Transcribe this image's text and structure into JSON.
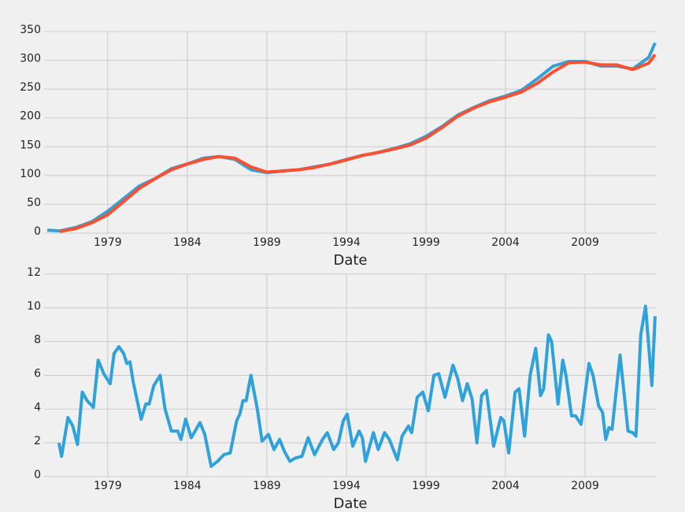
{
  "chart_data": [
    {
      "type": "line",
      "xlabel": "Date",
      "x": [
        1975.2,
        1976,
        1977,
        1978,
        1979,
        1980,
        1981,
        1982,
        1983,
        1984,
        1985,
        1986,
        1987,
        1988,
        1989,
        1990,
        1991,
        1992,
        1993,
        1994,
        1995,
        1996,
        1997,
        1998,
        1999,
        2000,
        2001,
        2002,
        2003,
        2004,
        2005,
        2006,
        2007,
        2008,
        2009,
        2010,
        2011,
        2012,
        2013,
        2013.4
      ],
      "series": [
        {
          "color": "#30a2da",
          "values": [
            5,
            4,
            10,
            20,
            38,
            60,
            82,
            95,
            112,
            120,
            130,
            133,
            128,
            110,
            105,
            108,
            110,
            115,
            120,
            128,
            135,
            140,
            147,
            155,
            168,
            185,
            205,
            218,
            230,
            238,
            248,
            268,
            290,
            298,
            298,
            290,
            290,
            285,
            305,
            330
          ]
        },
        {
          "color": "#fc4f30",
          "values": [
            null,
            3,
            8,
            18,
            32,
            55,
            78,
            95,
            110,
            120,
            128,
            133,
            130,
            115,
            106,
            108,
            110,
            114,
            120,
            127,
            135,
            140,
            146,
            153,
            165,
            183,
            203,
            217,
            228,
            236,
            245,
            260,
            280,
            296,
            297,
            292,
            292,
            284,
            295,
            310
          ]
        }
      ],
      "xlim": [
        1975,
        2013.5
      ],
      "ylim": [
        0,
        350
      ],
      "xticks": [
        1979,
        1984,
        1989,
        1994,
        1999,
        2004,
        2009
      ],
      "yticks": [
        0,
        50,
        100,
        150,
        200,
        250,
        300,
        350
      ],
      "grid": true
    },
    {
      "type": "line",
      "xlabel": "Date",
      "x": [
        1975.93,
        1976.1,
        1976.5,
        1976.8,
        1977.1,
        1977.4,
        1977.7,
        1978.1,
        1978.4,
        1978.75,
        1979.15,
        1979.4,
        1979.7,
        1980,
        1980.2,
        1980.4,
        1980.6,
        1981.1,
        1981.4,
        1981.6,
        1981.9,
        1982.3,
        1982.6,
        1983,
        1983.4,
        1983.6,
        1983.9,
        1984.25,
        1984.8,
        1985.1,
        1985.5,
        1985.9,
        1986.3,
        1986.7,
        1987.1,
        1987.3,
        1987.5,
        1987.7,
        1988,
        1988.4,
        1988.7,
        1989.1,
        1989.45,
        1989.8,
        1990.1,
        1990.45,
        1990.8,
        1991.2,
        1991.6,
        1992,
        1992.5,
        1992.8,
        1993.2,
        1993.5,
        1993.8,
        1994.05,
        1994.4,
        1994.8,
        1995,
        1995.2,
        1995.7,
        1996,
        1996.4,
        1996.7,
        1997.2,
        1997.5,
        1997.9,
        1998.1,
        1998.45,
        1998.8,
        1999.15,
        1999.5,
        1999.8,
        2000.2,
        2000.7,
        2001,
        2001.3,
        2001.6,
        2001.9,
        2002.2,
        2002.5,
        2002.8,
        2003.25,
        2003.7,
        2003.9,
        2004.2,
        2004.6,
        2004.85,
        2005.2,
        2005.55,
        2005.9,
        2006.2,
        2006.4,
        2006.7,
        2006.9,
        2007.3,
        2007.6,
        2007.8,
        2008.15,
        2008.4,
        2008.75,
        2009.25,
        2009.5,
        2009.85,
        2010.1,
        2010.3,
        2010.5,
        2010.7,
        2011.2,
        2011.5,
        2011.7,
        2012,
        2012.2,
        2012.5,
        2012.8,
        2013.2,
        2013.4
      ],
      "series": [
        {
          "color": "#30a2da",
          "values": [
            2,
            1.2,
            3.5,
            3,
            1.9,
            5,
            4.5,
            4.1,
            6.9,
            6.1,
            5.5,
            7.3,
            7.7,
            7.3,
            6.7,
            6.8,
            5.6,
            3.4,
            4.3,
            4.3,
            5.4,
            6,
            4,
            2.7,
            2.7,
            2.2,
            3.4,
            2.3,
            3.2,
            2.5,
            0.6,
            0.9,
            1.3,
            1.4,
            3.3,
            3.7,
            4.5,
            4.5,
            6,
            4,
            2.1,
            2.5,
            1.6,
            2.2,
            1.5,
            0.9,
            1.1,
            1.2,
            2.3,
            1.3,
            2.2,
            2.6,
            1.6,
            2,
            3.3,
            3.7,
            1.8,
            2.7,
            2.3,
            0.9,
            2.6,
            1.6,
            2.6,
            2.2,
            1,
            2.4,
            3,
            2.6,
            4.7,
            5,
            3.9,
            6,
            6.1,
            4.7,
            6.6,
            5.8,
            4.5,
            5.5,
            4.6,
            2,
            4.8,
            5.1,
            1.8,
            3.5,
            3.3,
            1.4,
            5,
            5.2,
            2.4,
            6,
            7.6,
            4.8,
            5.2,
            8.4,
            8,
            4.3,
            6.9,
            6,
            3.6,
            3.6,
            3.1,
            6.7,
            6,
            4.2,
            3.8,
            2.2,
            2.9,
            2.8,
            7.2,
            4.5,
            2.7,
            2.6,
            2.4,
            8.4,
            10.1,
            5.4,
            9.5
          ]
        }
      ],
      "xlim": [
        1975,
        2013.5
      ],
      "ylim": [
        0,
        12
      ],
      "xticks": [
        1979,
        1984,
        1989,
        1994,
        1999,
        2004,
        2009
      ],
      "yticks": [
        0,
        2,
        4,
        6,
        8,
        10,
        12
      ],
      "grid": true
    }
  ]
}
